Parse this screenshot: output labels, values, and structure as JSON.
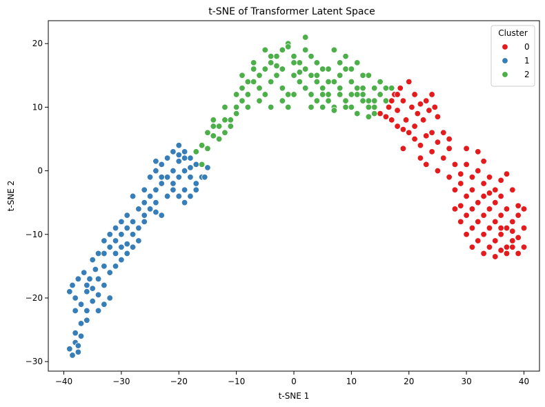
{
  "chart_data": {
    "type": "scatter",
    "title": "t-SNE of Transformer Latent Space",
    "xlabel": "t-SNE 1",
    "ylabel": "t-SNE 2",
    "xlim": [
      -42.7,
      42.7
    ],
    "ylim": [
      -31.5,
      23.6
    ],
    "xticks": [
      -40,
      -30,
      -20,
      -10,
      0,
      10,
      20,
      30,
      40
    ],
    "yticks": [
      -30,
      -20,
      -10,
      0,
      10,
      20
    ],
    "grid": false,
    "legend": {
      "title": "Cluster",
      "placement": "top-right"
    },
    "series": [
      {
        "name": "0",
        "color": "#e41a1c",
        "points": [
          [
            15,
            9
          ],
          [
            16,
            8.5
          ],
          [
            16.5,
            10
          ],
          [
            17,
            11
          ],
          [
            17.5,
            12
          ],
          [
            18,
            9.5
          ],
          [
            18.5,
            13
          ],
          [
            19,
            11
          ],
          [
            19.5,
            8
          ],
          [
            20,
            14
          ],
          [
            20.5,
            10
          ],
          [
            21,
            12
          ],
          [
            21.5,
            9
          ],
          [
            22,
            10.5
          ],
          [
            22.5,
            8
          ],
          [
            23,
            11
          ],
          [
            23.5,
            9.5
          ],
          [
            24,
            12
          ],
          [
            24.5,
            10
          ],
          [
            25,
            8.5
          ],
          [
            17,
            8
          ],
          [
            18,
            7
          ],
          [
            19,
            6.5
          ],
          [
            20,
            6
          ],
          [
            21,
            5
          ],
          [
            22,
            4
          ],
          [
            23,
            5.5
          ],
          [
            24,
            3
          ],
          [
            25,
            4.5
          ],
          [
            26,
            2
          ],
          [
            27,
            3.5
          ],
          [
            28,
            1
          ],
          [
            29,
            -0.5
          ],
          [
            30,
            1
          ],
          [
            31,
            -1
          ],
          [
            32,
            0
          ],
          [
            33,
            -2
          ],
          [
            34,
            -1
          ],
          [
            35,
            -3
          ],
          [
            36,
            -1.5
          ],
          [
            37,
            -0.5
          ],
          [
            28,
            -3
          ],
          [
            29,
            -2
          ],
          [
            30,
            -4
          ],
          [
            31,
            -3
          ],
          [
            32,
            -5
          ],
          [
            33,
            -4
          ],
          [
            34,
            -6
          ],
          [
            35,
            -5
          ],
          [
            36,
            -7
          ],
          [
            37,
            -6
          ],
          [
            38,
            -8
          ],
          [
            39,
            -7
          ],
          [
            40,
            -9
          ],
          [
            28,
            -6
          ],
          [
            29,
            -8
          ],
          [
            30,
            -7
          ],
          [
            31,
            -9
          ],
          [
            32,
            -8
          ],
          [
            33,
            -10
          ],
          [
            34,
            -9
          ],
          [
            35,
            -11
          ],
          [
            36,
            -10
          ],
          [
            37,
            -12
          ],
          [
            38,
            -11
          ],
          [
            39,
            -13
          ],
          [
            40,
            -12
          ],
          [
            30,
            -10
          ],
          [
            31,
            -12
          ],
          [
            32,
            -11
          ],
          [
            33,
            -13
          ],
          [
            34,
            -12
          ],
          [
            35,
            -13.5
          ],
          [
            36,
            -12.5
          ],
          [
            37,
            -13
          ],
          [
            38,
            -9.5
          ],
          [
            39,
            -10.5
          ],
          [
            40,
            -6
          ],
          [
            26,
            6
          ],
          [
            27,
            5
          ],
          [
            22,
            2
          ],
          [
            23,
            1
          ],
          [
            25,
            0
          ],
          [
            27,
            -1
          ],
          [
            29,
            -5.5
          ],
          [
            31,
            -6
          ],
          [
            33,
            -7
          ],
          [
            35,
            -8
          ],
          [
            37,
            -9
          ],
          [
            39,
            -5.5
          ],
          [
            32,
            3
          ],
          [
            33,
            1.5
          ],
          [
            30,
            3.5
          ],
          [
            36,
            -4
          ],
          [
            38,
            -3
          ],
          [
            34,
            -3.5
          ],
          [
            36,
            -9
          ],
          [
            38,
            -12
          ],
          [
            24,
            6
          ],
          [
            21,
            7
          ],
          [
            19,
            3.5
          ],
          [
            18,
            12
          ]
        ]
      },
      {
        "name": "1",
        "color": "#377eb8",
        "points": [
          [
            -39,
            -28
          ],
          [
            -38.5,
            -29
          ],
          [
            -38,
            -27
          ],
          [
            -37.5,
            -28.5
          ],
          [
            -37,
            -26
          ],
          [
            -38,
            -25.5
          ],
          [
            -37,
            -24
          ],
          [
            -36,
            -23.5
          ],
          [
            -37.5,
            -27.5
          ],
          [
            -38,
            -20
          ],
          [
            -37,
            -21
          ],
          [
            -36,
            -19
          ],
          [
            -35,
            -20.5
          ],
          [
            -34,
            -22
          ],
          [
            -33,
            -21
          ],
          [
            -38.5,
            -18
          ],
          [
            -37.5,
            -17
          ],
          [
            -36.5,
            -16
          ],
          [
            -35.5,
            -17
          ],
          [
            -34.5,
            -15.5
          ],
          [
            -36,
            -18
          ],
          [
            -35,
            -18.5
          ],
          [
            -34,
            -19.5
          ],
          [
            -33,
            -18
          ],
          [
            -32,
            -20
          ],
          [
            -32,
            -16
          ],
          [
            -31,
            -15
          ],
          [
            -30,
            -14
          ],
          [
            -29,
            -13
          ],
          [
            -28,
            -12
          ],
          [
            -33,
            -13
          ],
          [
            -32,
            -12
          ],
          [
            -31,
            -11
          ],
          [
            -30,
            -10
          ],
          [
            -29,
            -9
          ],
          [
            -28,
            -8
          ],
          [
            -32,
            -10
          ],
          [
            -31,
            -9
          ],
          [
            -30,
            -8
          ],
          [
            -29,
            -7
          ],
          [
            -28,
            -10
          ],
          [
            -27,
            -9
          ],
          [
            -26,
            -8
          ],
          [
            -33,
            -11
          ],
          [
            -30,
            -12
          ],
          [
            -28,
            -4
          ],
          [
            -27,
            -6
          ],
          [
            -26,
            -5
          ],
          [
            -25,
            -4
          ],
          [
            -24,
            -3
          ],
          [
            -23,
            -2
          ],
          [
            -25,
            -6
          ],
          [
            -24,
            -5
          ],
          [
            -23,
            -7
          ],
          [
            -26,
            -3
          ],
          [
            -25,
            -1
          ],
          [
            -24,
            0
          ],
          [
            -23,
            1
          ],
          [
            -22,
            2
          ],
          [
            -21,
            3
          ],
          [
            -20,
            4
          ],
          [
            -19,
            3
          ],
          [
            -18,
            2
          ],
          [
            -17,
            1
          ],
          [
            -22,
            -1
          ],
          [
            -21,
            0
          ],
          [
            -20,
            -1
          ],
          [
            -19,
            0
          ],
          [
            -18,
            -1
          ],
          [
            -17,
            -2
          ],
          [
            -16,
            -1
          ],
          [
            -21,
            -3
          ],
          [
            -20,
            -4
          ],
          [
            -19,
            -3
          ],
          [
            -18,
            -4
          ],
          [
            -17,
            -3
          ],
          [
            -22,
            -4
          ],
          [
            -20,
            1.5
          ],
          [
            -19,
            2
          ],
          [
            -18,
            0.5
          ],
          [
            -16,
            1
          ],
          [
            -15,
            0.5
          ],
          [
            -21,
            -2
          ],
          [
            -23,
            -1
          ],
          [
            -24,
            1.5
          ],
          [
            -20,
            2.5
          ],
          [
            -17,
            3
          ],
          [
            -35,
            -14
          ],
          [
            -34,
            -13
          ],
          [
            -27,
            -11
          ],
          [
            -29,
            -11.5
          ],
          [
            -31,
            -13
          ],
          [
            -36,
            -22
          ],
          [
            -39,
            -19
          ],
          [
            -38,
            -22
          ],
          [
            -34,
            -17
          ],
          [
            -33,
            -15
          ],
          [
            -26,
            -7
          ],
          [
            -24,
            -6.5
          ],
          [
            -19,
            -5
          ],
          [
            -15.5,
            -1
          ]
        ]
      },
      {
        "name": "2",
        "color": "#4daf4a",
        "points": [
          [
            -17,
            3
          ],
          [
            -16,
            4
          ],
          [
            -15,
            6
          ],
          [
            -14,
            7
          ],
          [
            -13,
            5
          ],
          [
            -12,
            6
          ],
          [
            -11,
            8
          ],
          [
            -10,
            9
          ],
          [
            -9,
            11
          ],
          [
            -8,
            12
          ],
          [
            -7,
            14
          ],
          [
            -6,
            15
          ],
          [
            -5,
            16
          ],
          [
            -4,
            17
          ],
          [
            -3,
            18
          ],
          [
            -2,
            19
          ],
          [
            -1,
            20
          ],
          [
            0,
            18
          ],
          [
            1,
            17
          ],
          [
            2,
            16
          ],
          [
            3,
            15
          ],
          [
            4,
            14
          ],
          [
            5,
            13
          ],
          [
            6,
            12
          ],
          [
            7,
            14
          ],
          [
            8,
            15
          ],
          [
            9,
            16
          ],
          [
            10,
            14
          ],
          [
            11,
            13
          ],
          [
            12,
            12
          ],
          [
            13,
            11
          ],
          [
            14,
            10
          ],
          [
            15,
            12
          ],
          [
            16,
            11
          ],
          [
            17,
            13
          ],
          [
            -16,
            1
          ],
          [
            -15,
            3.5
          ],
          [
            -14,
            5.5
          ],
          [
            -13,
            7
          ],
          [
            -12,
            8
          ],
          [
            -11,
            7
          ],
          [
            -10,
            10
          ],
          [
            -9,
            13
          ],
          [
            -8,
            14
          ],
          [
            -7,
            16
          ],
          [
            -6,
            13
          ],
          [
            -5,
            12
          ],
          [
            -4,
            14
          ],
          [
            -3,
            15
          ],
          [
            -2,
            13
          ],
          [
            -1,
            12
          ],
          [
            0,
            15
          ],
          [
            1,
            14
          ],
          [
            2,
            13
          ],
          [
            3,
            12
          ],
          [
            4,
            11
          ],
          [
            5,
            10
          ],
          [
            6,
            11
          ],
          [
            7,
            10
          ],
          [
            8,
            12
          ],
          [
            9,
            11
          ],
          [
            10,
            10
          ],
          [
            11,
            12
          ],
          [
            12,
            11
          ],
          [
            13,
            10
          ],
          [
            14,
            9
          ],
          [
            -4,
            18
          ],
          [
            -2,
            16
          ],
          [
            0,
            17
          ],
          [
            2,
            19
          ],
          [
            4,
            17
          ],
          [
            6,
            16
          ],
          [
            8,
            17
          ],
          [
            10,
            16
          ],
          [
            12,
            15
          ],
          [
            14,
            13
          ],
          [
            -8,
            10
          ],
          [
            -6,
            11
          ],
          [
            -4,
            10
          ],
          [
            -2,
            11
          ],
          [
            0,
            12
          ],
          [
            2,
            21
          ],
          [
            -1,
            19.5
          ],
          [
            3,
            18
          ],
          [
            5,
            16
          ],
          [
            7,
            19
          ],
          [
            9,
            18
          ],
          [
            11,
            17
          ],
          [
            13,
            15
          ],
          [
            15,
            14
          ],
          [
            16,
            13
          ],
          [
            -3,
            16.5
          ],
          [
            1,
            15.5
          ],
          [
            4,
            15
          ],
          [
            6,
            14
          ],
          [
            8,
            13
          ],
          [
            10,
            12
          ],
          [
            12,
            13
          ],
          [
            14,
            11
          ],
          [
            -5,
            19
          ],
          [
            -7,
            17
          ],
          [
            -9,
            15
          ],
          [
            -1,
            10
          ],
          [
            3,
            10
          ],
          [
            5,
            12
          ],
          [
            7,
            9.5
          ],
          [
            9,
            10
          ],
          [
            11,
            9
          ],
          [
            13,
            8.5
          ],
          [
            -10,
            12
          ],
          [
            -12,
            10
          ],
          [
            -14,
            8
          ]
        ]
      }
    ]
  }
}
